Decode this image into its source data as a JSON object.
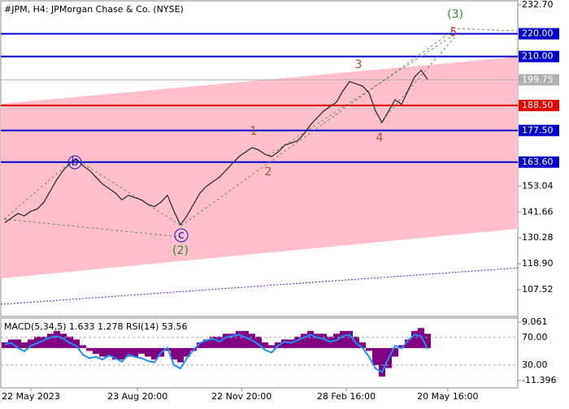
{
  "chart_data": {
    "type": "line",
    "title": "#JPM, H4:  JPMorgan Chase & Co. (NYSE)",
    "values": [
      137,
      139,
      141,
      140,
      142,
      143,
      146,
      151,
      156,
      160,
      163,
      165,
      162,
      160,
      157,
      154,
      152,
      150,
      147,
      149,
      148,
      147,
      145,
      144,
      146,
      149,
      142,
      136,
      140,
      145,
      150,
      153,
      155,
      157,
      160,
      163,
      166,
      168,
      170,
      169,
      167,
      166,
      168,
      171,
      172,
      173,
      176,
      180,
      183,
      186,
      188,
      190,
      195,
      199,
      198,
      197,
      194,
      186,
      181,
      186,
      191,
      189,
      195,
      201,
      204,
      200
    ],
    "color": "#2f2f2f",
    "ylim": [
      107.52,
      232.7
    ],
    "yticks": [
      {
        "value": 232.7,
        "label": "232.70"
      },
      {
        "value": 153.04,
        "label": "153.04"
      },
      {
        "value": 141.66,
        "label": "141.66"
      },
      {
        "value": 130.28,
        "label": "130.28"
      },
      {
        "value": 118.9,
        "label": "118.90"
      },
      {
        "value": 107.52,
        "label": "107.52"
      }
    ],
    "levels": [
      {
        "value": 220.0,
        "label": "220.00",
        "color": "#0000cc"
      },
      {
        "value": 210.0,
        "label": "210.00",
        "color": "#0000cc"
      },
      {
        "value": 188.5,
        "label": "188.50",
        "color": "#e60000"
      },
      {
        "value": 177.5,
        "label": "177.50",
        "color": "#0000cc"
      },
      {
        "value": 163.6,
        "label": "163.60",
        "color": "#0000cc"
      }
    ],
    "last_price": {
      "value": 199.75,
      "label": "199.75",
      "color": "#b0b0b0"
    },
    "channel": {
      "upper": [
        189.2,
        209.9
      ],
      "lower": [
        112.5,
        134.3
      ],
      "color": "#ffc0cb",
      "base": [
        101.1,
        117.1
      ],
      "base_color": "#6a0dad"
    },
    "xlim": [
      -0.625,
      78.875
    ],
    "xticks": [
      {
        "value": 4,
        "label": "22 May 2023"
      },
      {
        "value": 20.4,
        "label": "23 Aug 20:00"
      },
      {
        "value": 36.4,
        "label": "22 Nov 20:00"
      },
      {
        "value": 52.5,
        "label": "28 Feb 16:00"
      },
      {
        "value": 68.1,
        "label": "20 May 16:00"
      }
    ],
    "annotations": [
      "b",
      "c",
      "(2)",
      "1",
      "2",
      "3",
      "4",
      "5",
      "(3)"
    ],
    "indicator": {
      "label": "MACD(5,34,5) 1.633 1.278 RSI(14) 53.56",
      "macd_lim": [
        -11.396,
        9.061
      ],
      "macd_ticks": [
        {
          "value": 9.061,
          "label": "9.061"
        },
        {
          "value": -11.396,
          "label": "-11.396"
        }
      ],
      "macd_color": "#800080",
      "histogram": [
        2,
        3,
        3,
        2,
        3,
        4,
        4,
        5,
        6,
        5,
        4,
        3,
        1,
        -1,
        -2,
        -3,
        -3,
        -4,
        -4,
        -3,
        -3,
        -2,
        -3,
        -4,
        -3,
        -1,
        -4,
        -5,
        -3,
        -1,
        2,
        3,
        4,
        4,
        5,
        5,
        6,
        6,
        5,
        4,
        2,
        1,
        2,
        3,
        3,
        4,
        5,
        6,
        5,
        5,
        4,
        5,
        6,
        6,
        4,
        2,
        -1,
        -6,
        -10,
        -7,
        -3,
        1,
        3,
        6,
        7,
        5
      ],
      "rsi_lim": [
        -3,
        98
      ],
      "rsi_ticks": [
        {
          "value": 70,
          "label": "70.00"
        },
        {
          "value": 30,
          "label": "30.00"
        }
      ],
      "rsi_color": "#1e90ff",
      "rsi": [
        60,
        62,
        55,
        50,
        58,
        62,
        66,
        70,
        72,
        68,
        62,
        58,
        45,
        40,
        42,
        38,
        44,
        40,
        35,
        45,
        42,
        40,
        36,
        34,
        48,
        55,
        30,
        25,
        40,
        52,
        62,
        66,
        68,
        64,
        70,
        72,
        74,
        70,
        66,
        60,
        52,
        48,
        58,
        64,
        62,
        66,
        70,
        74,
        70,
        68,
        64,
        66,
        72,
        74,
        62,
        55,
        42,
        25,
        20,
        40,
        58,
        54,
        66,
        74,
        72,
        53.56
      ]
    }
  }
}
